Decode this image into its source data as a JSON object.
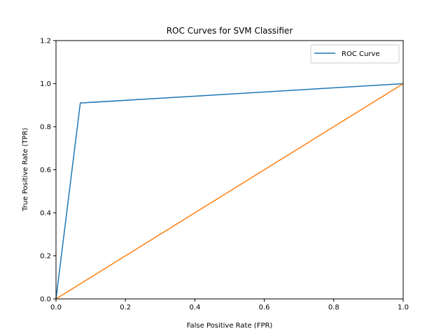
{
  "chart_data": {
    "type": "line",
    "title": "ROC Curves for SVM Classifier",
    "xlabel": "False Positive Rate (FPR)",
    "ylabel": "True Positive Rate (TPR)",
    "xlim": [
      0,
      1
    ],
    "ylim": [
      0,
      1.2
    ],
    "xticks": [
      "0.0",
      "0.2",
      "0.4",
      "0.6",
      "0.8",
      "1.0"
    ],
    "yticks": [
      "0.0",
      "0.2",
      "0.4",
      "0.6",
      "0.8",
      "1.0",
      "1.2"
    ],
    "grid": false,
    "legend_position": "top-right",
    "series": [
      {
        "name": "ROC Curve",
        "color": "#1f77b4",
        "x": [
          0.0,
          0.07,
          1.0
        ],
        "y": [
          0.0,
          0.91,
          1.0
        ]
      },
      {
        "color": "#ff7f0e",
        "x": [
          0.0,
          1.0
        ],
        "y": [
          0.0,
          1.0
        ]
      }
    ]
  }
}
